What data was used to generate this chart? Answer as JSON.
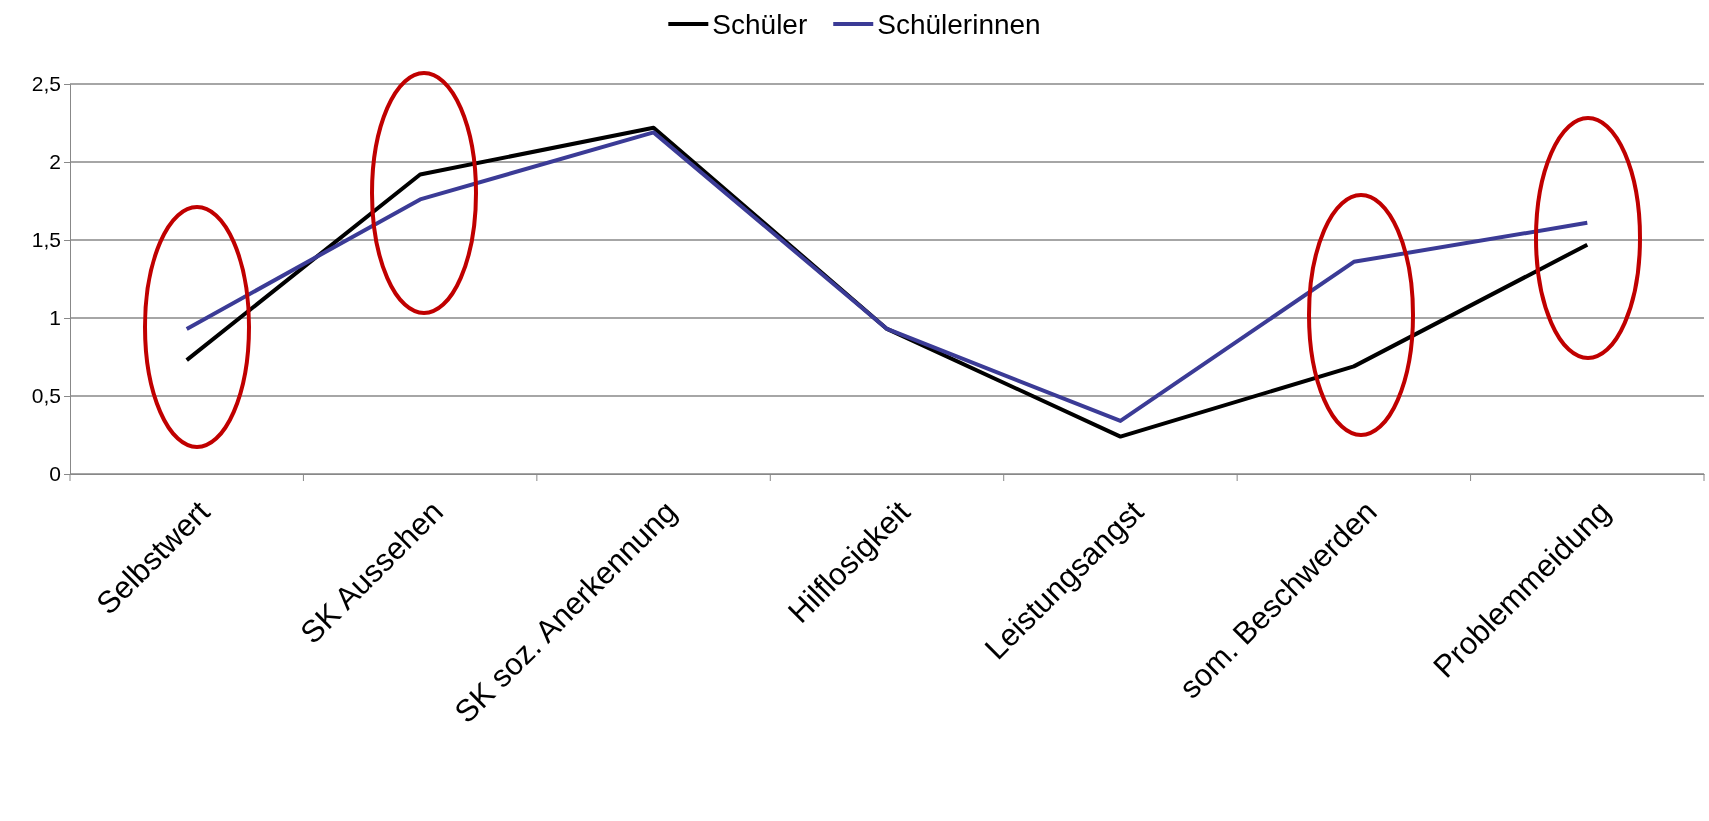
{
  "chart_data": {
    "type": "line",
    "categories": [
      "Selbstwert",
      "SK Aussehen",
      "SK soz. Anerkennung",
      "Hilflosigkeit",
      "Leistungsangst",
      "som. Beschwerden",
      "Problemmeidung"
    ],
    "series": [
      {
        "name": "Schüler",
        "color": "#000000",
        "values": [
          0.73,
          1.92,
          2.22,
          0.93,
          0.24,
          0.69,
          1.47
        ]
      },
      {
        "name": "Schülerinnen",
        "color": "#3b3b96",
        "values": [
          0.93,
          1.76,
          2.19,
          0.93,
          0.34,
          1.36,
          1.61
        ]
      }
    ],
    "ylim": [
      0,
      2.5
    ],
    "yticks": [
      0,
      {
        "value": 0.5,
        "label": "0,5"
      },
      1,
      {
        "value": 1.5,
        "label": "1,5"
      },
      2,
      {
        "value": 2.5,
        "label": "2,5"
      }
    ],
    "grid": "y",
    "legend": "top",
    "marker": "none",
    "line_style": "solid"
  }
}
